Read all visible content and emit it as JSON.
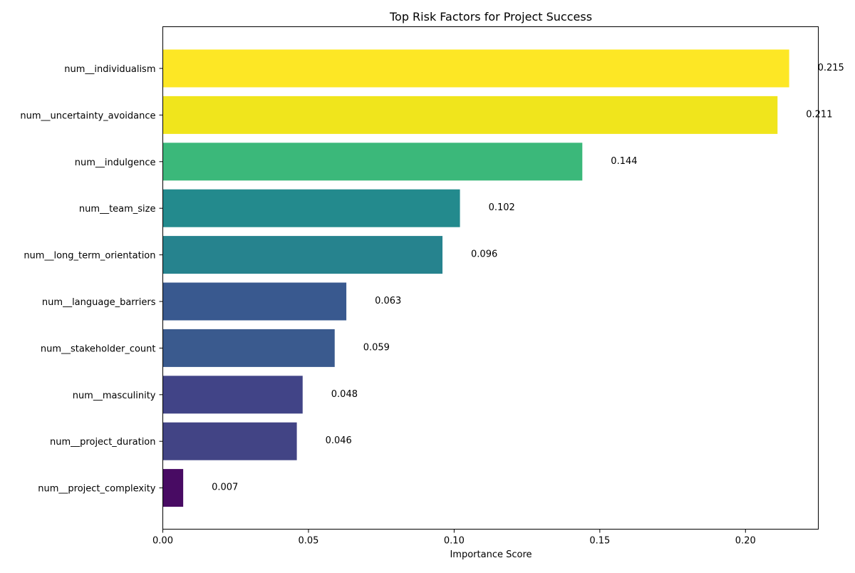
{
  "chart_data": {
    "type": "bar",
    "orientation": "horizontal",
    "title": "Top Risk Factors for Project Success",
    "xlabel": "Importance Score",
    "ylabel": "",
    "xlim": [
      0,
      0.225
    ],
    "xticks": [
      0.0,
      0.05,
      0.1,
      0.15,
      0.2
    ],
    "xtick_labels": [
      "0.00",
      "0.05",
      "0.10",
      "0.15",
      "0.20"
    ],
    "grid": false,
    "categories": [
      "num__individualism",
      "num__uncertainty_avoidance",
      "num__indulgence",
      "num__team_size",
      "num__long_term_orientation",
      "num__language_barriers",
      "num__stakeholder_count",
      "num__masculinity",
      "num__project_duration",
      "num__project_complexity"
    ],
    "values": [
      0.215,
      0.211,
      0.144,
      0.102,
      0.096,
      0.063,
      0.059,
      0.048,
      0.046,
      0.007
    ],
    "value_labels": [
      "0.215",
      "0.211",
      "0.144",
      "0.102",
      "0.096",
      "0.063",
      "0.059",
      "0.048",
      "0.046",
      "0.007"
    ],
    "colors": [
      "#fde725",
      "#f0e51c",
      "#3bb87a",
      "#238a8d",
      "#26838e",
      "#39598f",
      "#3a5a8e",
      "#414487",
      "#424485",
      "#480b63"
    ]
  }
}
